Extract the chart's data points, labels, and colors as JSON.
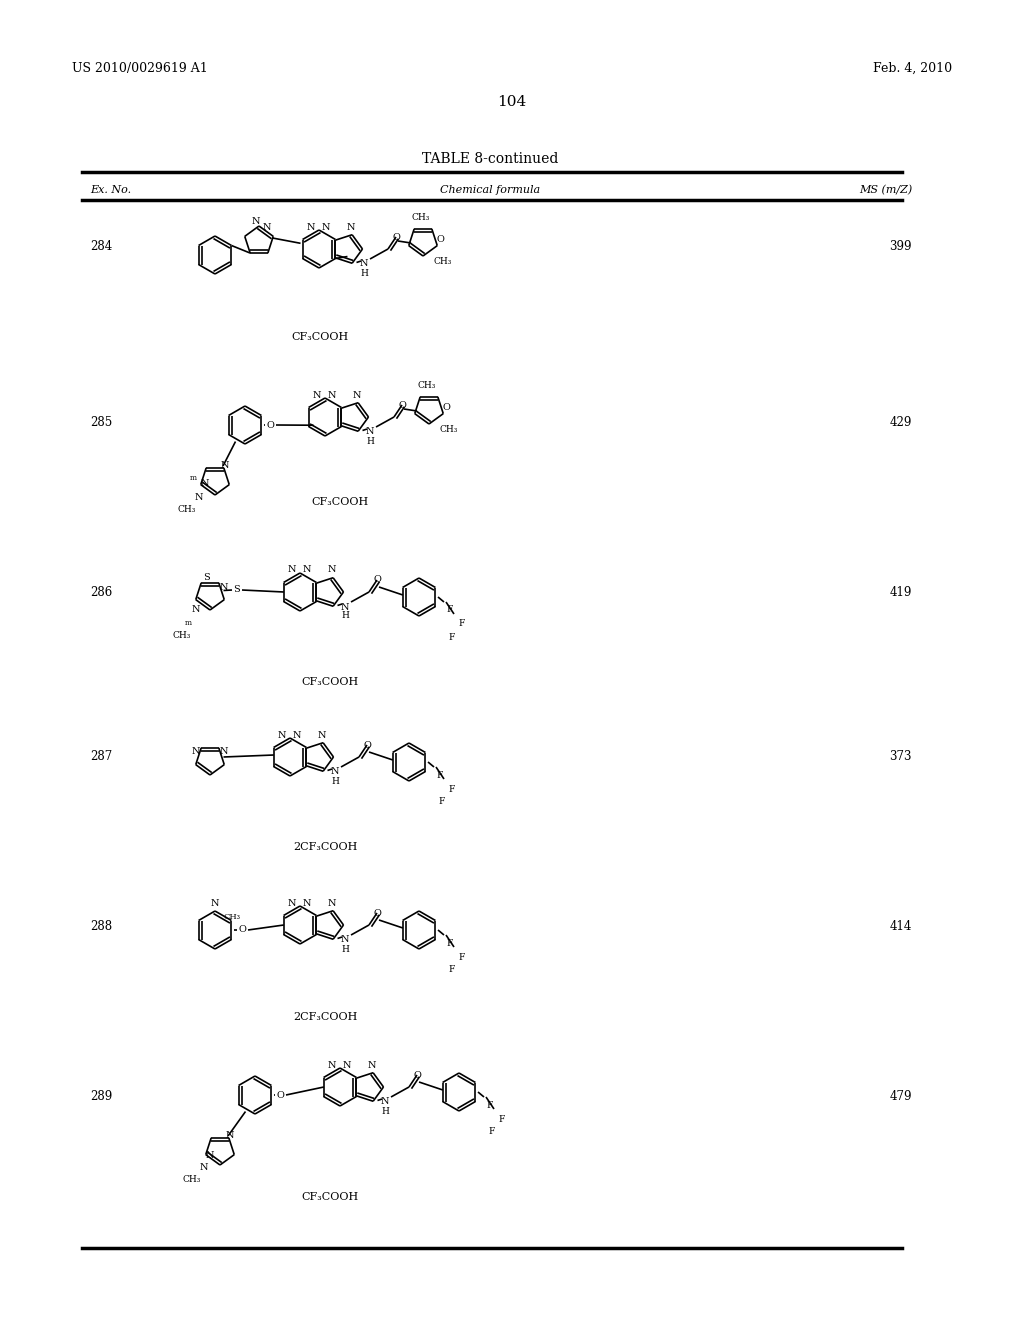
{
  "bg_color": "#ffffff",
  "header_left": "US 2010/0029619 A1",
  "header_right": "Feb. 4, 2010",
  "page_number": "104",
  "table_title": "TABLE 8-continued",
  "col_headers": [
    "Ex. No.",
    "Chemical formula",
    "MS (m/Z)"
  ],
  "rows": [
    {
      "ex_no": "284",
      "ms": "399",
      "label": "CF₃COOH"
    },
    {
      "ex_no": "285",
      "ms": "429",
      "label": "CF₃COOH"
    },
    {
      "ex_no": "286",
      "ms": "419",
      "label": "CF₃COOH"
    },
    {
      "ex_no": "287",
      "ms": "373",
      "label": "2CF₃COOH"
    },
    {
      "ex_no": "288",
      "ms": "414",
      "label": "2CF₃COOH"
    },
    {
      "ex_no": "289",
      "ms": "479",
      "label": "CF₃COOH"
    }
  ]
}
